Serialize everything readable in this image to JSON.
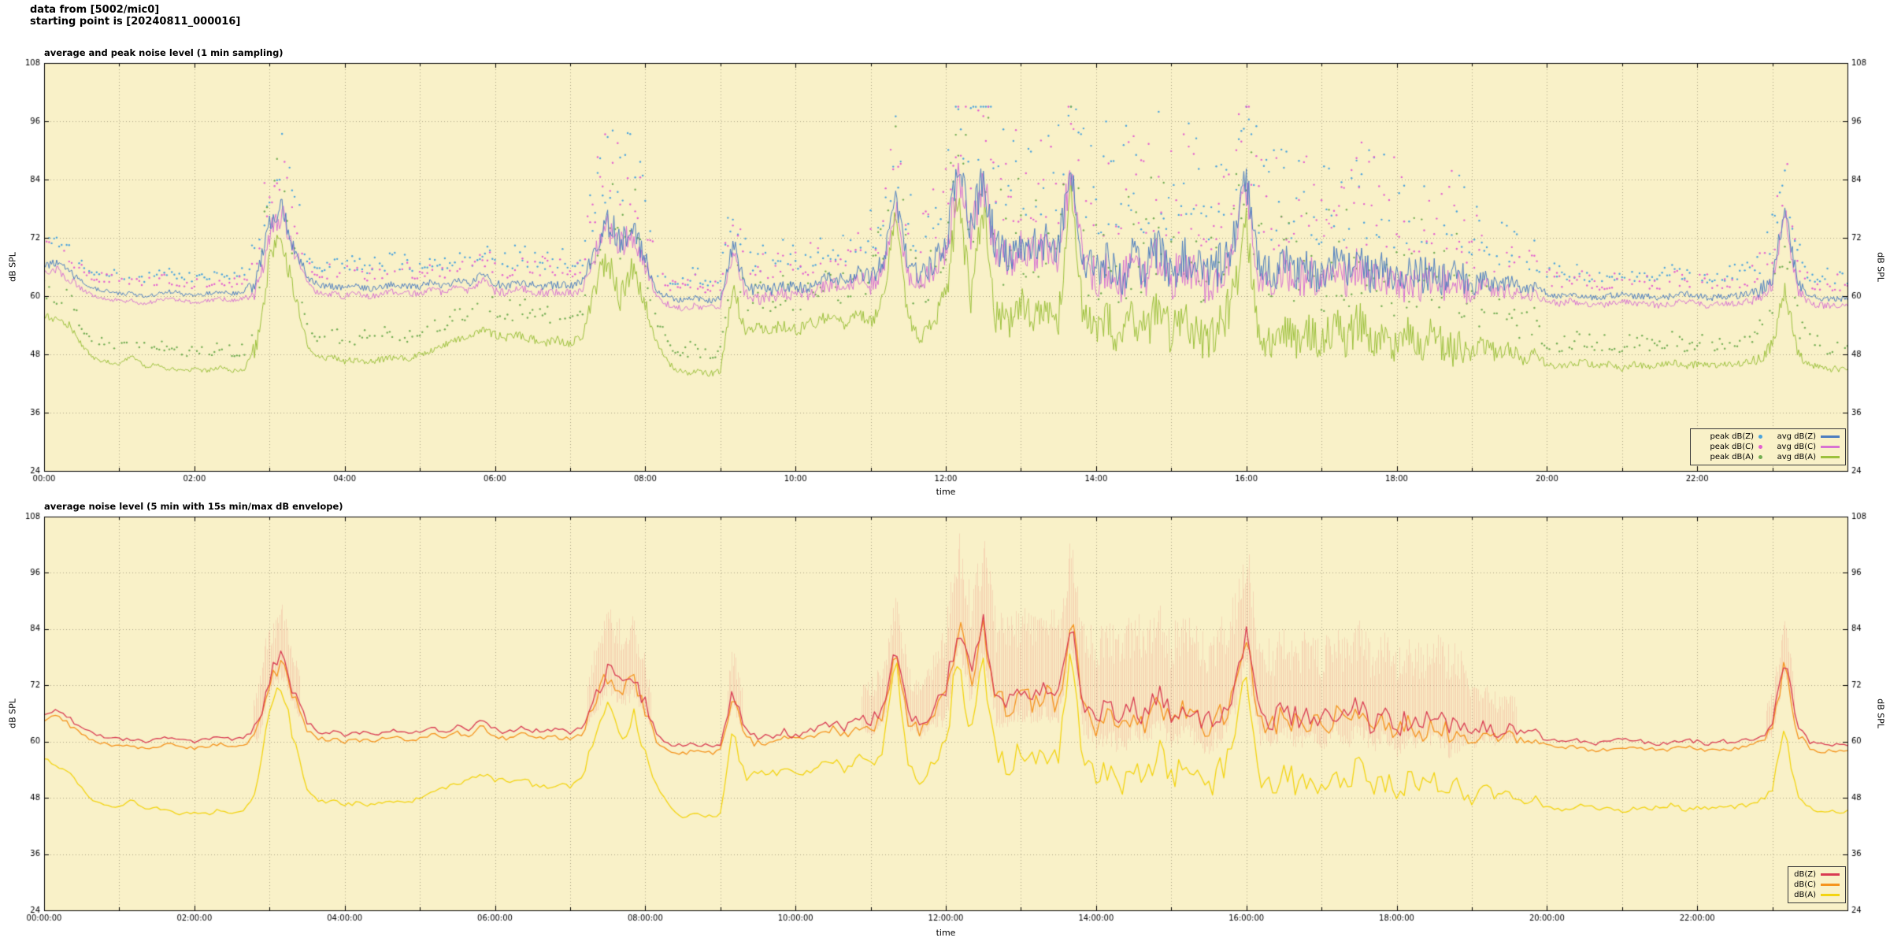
{
  "header": {
    "line1": "data from [5002/mic0]",
    "line2": "starting point is [20240811_000016]"
  },
  "colors": {
    "page_bg": "#ffffff",
    "plot_bg": "#f9f1c8",
    "grid": "#a9a284",
    "axis": "#000000"
  },
  "chart_data": {
    "time_step_min": 10,
    "time_start": "00:00",
    "time_end": "24:00",
    "series_note": "dB SPL levels sampled every 10 min from 00:00 to 24:00; spread_db encodes local variability driving peak scatter and the min/max envelope",
    "series": {
      "dbz_avg": [
        66,
        67,
        65,
        63,
        61.5,
        61,
        60.5,
        60.5,
        60,
        60.5,
        61,
        60.5,
        60,
        60.5,
        61,
        60.5,
        61,
        63,
        74,
        78,
        70,
        64,
        62,
        62,
        61.5,
        62,
        61.5,
        62,
        62.5,
        62,
        62,
        63,
        62,
        63.5,
        62.5,
        65,
        62.5,
        62,
        63,
        62.5,
        62,
        62.5,
        62,
        63,
        70,
        75,
        72,
        74,
        68,
        61,
        59.5,
        59,
        59.5,
        59,
        59.5,
        71,
        62,
        61,
        61.5,
        62,
        61.5,
        62,
        63,
        64,
        63,
        65,
        64,
        67,
        80,
        66,
        64,
        67,
        70,
        86,
        74,
        85,
        70,
        69,
        71,
        70,
        71,
        70,
        87,
        68,
        65,
        67,
        64,
        68,
        66,
        70,
        65,
        68,
        66,
        64,
        67,
        72,
        84,
        66,
        64,
        67,
        65,
        66,
        64,
        67,
        65,
        68,
        64,
        66,
        63,
        65,
        64,
        66,
        63,
        64,
        62,
        63.5,
        62,
        63,
        61.5,
        62,
        60.5,
        60,
        60.5,
        60,
        59.5,
        60,
        60.5,
        60,
        60,
        59.5,
        60,
        60.5,
        60,
        59.5,
        60,
        60,
        60.5,
        61,
        64,
        78,
        63,
        60,
        59.5,
        59.5,
        59.5
      ],
      "dbc_avg": [
        64.5,
        65.5,
        63.5,
        61.5,
        60,
        59.5,
        59,
        59,
        58.5,
        59,
        59.5,
        59,
        58.5,
        59,
        59.5,
        59,
        59.5,
        61.5,
        73,
        77,
        69,
        62.5,
        60.5,
        60.5,
        60,
        60.5,
        60,
        60.5,
        61,
        60.5,
        60.5,
        61.5,
        60.5,
        62,
        61,
        63.5,
        61,
        60.5,
        61.5,
        61,
        60.5,
        61,
        60.5,
        61.5,
        69,
        74,
        71,
        73,
        66.5,
        59.5,
        58,
        57.5,
        58,
        57.5,
        58,
        70,
        60.5,
        59.5,
        60,
        60.5,
        60,
        60.5,
        61.5,
        62.5,
        61.5,
        63.5,
        62.5,
        65.5,
        79,
        64.5,
        62.5,
        65.5,
        68.5,
        85,
        72.5,
        84,
        68.5,
        67.5,
        69.5,
        68.5,
        69.5,
        68.5,
        86,
        66.5,
        63.5,
        65.5,
        62.5,
        66.5,
        64.5,
        68.5,
        63.5,
        66.5,
        64.5,
        62.5,
        65.5,
        70.5,
        83,
        64.5,
        62.5,
        65.5,
        63.5,
        64.5,
        62.5,
        65.5,
        63.5,
        66.5,
        62.5,
        64.5,
        61.5,
        63.5,
        62.5,
        64.5,
        61.5,
        62.5,
        60.5,
        62,
        60.5,
        61.5,
        60,
        60.5,
        59,
        58.5,
        59,
        58.5,
        58,
        58.5,
        59,
        58.5,
        58.5,
        58,
        58.5,
        59,
        58.5,
        58,
        58.5,
        58.5,
        59,
        59.5,
        62.5,
        77,
        61.5,
        58.5,
        58,
        58,
        58
      ],
      "dba_avg": [
        56,
        55,
        54,
        50,
        47,
        46.5,
        46,
        48,
        45.5,
        46,
        45,
        44.5,
        45,
        44.5,
        45.5,
        44.5,
        45,
        50,
        68,
        72,
        60,
        50,
        47,
        47.5,
        46.5,
        47,
        46.5,
        47,
        47.5,
        47,
        48,
        49,
        50,
        51,
        52,
        53,
        52,
        51.5,
        52,
        51,
        50.5,
        51,
        50,
        52,
        62,
        68,
        60,
        66,
        58,
        50,
        46,
        44,
        44.5,
        44,
        44.5,
        62,
        52,
        54,
        53,
        54,
        53,
        54,
        55,
        56,
        54,
        57,
        55,
        59,
        78,
        55,
        52,
        56,
        60,
        80,
        60,
        78,
        56,
        55,
        58,
        56,
        58,
        56,
        80,
        55,
        52,
        55,
        50,
        56,
        53,
        58,
        52,
        56,
        53,
        50,
        54,
        60,
        74,
        53,
        50,
        54,
        51,
        53,
        50,
        54,
        51,
        55,
        50,
        52,
        49,
        52,
        50,
        53,
        49,
        50,
        48,
        50,
        48,
        49,
        47,
        48,
        46,
        45.5,
        46,
        46.5,
        45.5,
        46,
        45,
        46,
        45.5,
        46,
        46.5,
        45.5,
        46,
        45.5,
        46,
        46,
        46.5,
        47,
        50,
        62,
        48,
        46,
        45,
        45,
        45
      ],
      "spread_db": [
        2,
        2,
        2,
        1,
        1,
        1,
        1,
        1,
        1,
        1,
        1,
        1,
        1,
        1,
        1,
        1,
        1,
        5,
        6,
        6,
        5,
        1.5,
        1.5,
        1.5,
        1.5,
        1.5,
        1.5,
        1.5,
        1.5,
        1.5,
        1.5,
        1.5,
        1.5,
        1.5,
        1.5,
        1.5,
        2,
        2,
        2,
        2,
        2,
        2,
        2,
        2,
        6,
        7,
        7,
        7,
        5,
        1.5,
        1.5,
        1.5,
        1.5,
        1.5,
        1.5,
        5,
        3,
        3,
        3,
        3,
        3,
        3,
        3,
        3,
        3,
        3,
        5,
        5,
        6,
        5,
        5,
        6,
        9,
        10,
        9,
        10,
        9,
        9,
        9,
        9,
        9,
        9,
        10,
        9,
        10,
        10,
        10,
        10,
        10,
        10,
        10,
        10,
        10,
        10,
        10,
        10,
        10,
        9,
        9,
        9,
        9,
        9,
        9,
        9,
        9,
        9,
        9,
        9,
        9,
        9,
        9,
        9,
        9,
        9,
        5,
        5,
        4,
        4,
        3,
        3,
        1.5,
        1.5,
        1.5,
        1.5,
        1.5,
        1.5,
        1.5,
        1.5,
        1.5,
        1.5,
        1.5,
        1.5,
        1.5,
        1.5,
        1.5,
        1.5,
        1.5,
        3,
        4,
        5,
        3,
        1.5,
        1.5,
        1.5,
        1.5
      ]
    },
    "charts": [
      {
        "type": "line",
        "has_peak_scatter": true,
        "title": "average and peak noise level (1 min sampling)",
        "xlabel": "time",
        "ylabel": "dB SPL",
        "ylim": [
          24,
          108
        ],
        "ytick_step": 12,
        "x_range_hours": [
          0,
          24
        ],
        "xlabel_step_hours": 2,
        "xgrid_step_hours": 1,
        "xtick_with_seconds": false,
        "line_step_min": 1,
        "jitter": 0.45,
        "seed": 1337,
        "scatter_series": [
          {
            "name": "peak dB(Z)",
            "key": "dbz_avg",
            "color": "#4aa3dd"
          },
          {
            "name": "peak dB(C)",
            "key": "dbc_avg",
            "color": "#e35ed0"
          },
          {
            "name": "peak dB(A)",
            "key": "dba_avg",
            "color": "#72ad52"
          }
        ],
        "line_series": [
          {
            "name": "avg dB(A)",
            "key": "dba_avg",
            "color": "#9cc13c"
          },
          {
            "name": "avg dB(C)",
            "key": "dbc_avg",
            "color": "#d873d2"
          },
          {
            "name": "avg dB(Z)",
            "key": "dbz_avg",
            "color": "#4d7ec0"
          }
        ],
        "legend": {
          "rows": [
            [
              {
                "label": "peak dB(Z)",
                "marker": "dot",
                "color": "#4aa3dd"
              },
              {
                "label": "avg dB(Z)",
                "marker": "line",
                "color": "#4d7ec0"
              }
            ],
            [
              {
                "label": "peak dB(C)",
                "marker": "dot",
                "color": "#e35ed0"
              },
              {
                "label": "avg dB(C)",
                "marker": "line",
                "color": "#d873d2"
              }
            ],
            [
              {
                "label": "peak dB(A)",
                "marker": "dot",
                "color": "#72ad52"
              },
              {
                "label": "avg dB(A)",
                "marker": "line",
                "color": "#9cc13c"
              }
            ]
          ]
        }
      },
      {
        "type": "line",
        "has_envelope": true,
        "title": "average noise level (5 min with 15s min/max dB envelope)",
        "xlabel": "time",
        "ylabel": "dB SPL",
        "ylim": [
          24,
          108
        ],
        "ytick_step": 12,
        "x_range_hours": [
          0,
          24
        ],
        "xlabel_step_hours": 2,
        "xgrid_step_hours": 1,
        "xtick_with_seconds": true,
        "line_step_min": 3,
        "jitter": 0.3,
        "seed": 777,
        "envelope": {
          "key": "dbz_avg",
          "color": "rgba(238,120,110,0.22)",
          "min_spread": 3.5
        },
        "line_series": [
          {
            "name": "dB(A)",
            "key": "dba_avg",
            "color": "#f3d412"
          },
          {
            "name": "dB(C)",
            "key": "dbc_avg",
            "color": "#f5941e"
          },
          {
            "name": "dB(Z)",
            "key": "dbz_avg",
            "color": "#d93a52"
          }
        ],
        "legend": {
          "rows": [
            [
              {
                "label": "dB(Z)",
                "marker": "line",
                "color": "#d93a52"
              }
            ],
            [
              {
                "label": "dB(C)",
                "marker": "line",
                "color": "#f5941e"
              }
            ],
            [
              {
                "label": "dB(A)",
                "marker": "line",
                "color": "#f3d412"
              }
            ]
          ]
        }
      }
    ]
  }
}
